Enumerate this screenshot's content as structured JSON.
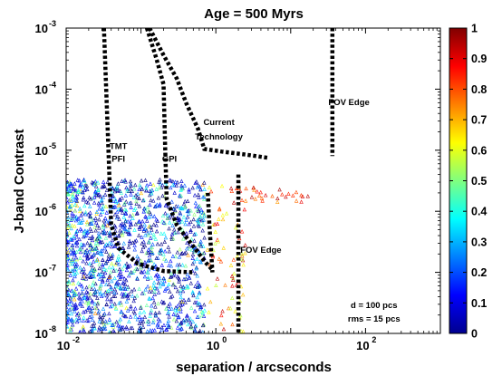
{
  "chart_data": {
    "type": "scatter",
    "title": "Age = 500 Myrs",
    "xlabel": "separation / arcseconds",
    "ylabel": "J-band Contrast",
    "x_scale": "log",
    "y_scale": "log",
    "xlim": [
      0.01,
      1000
    ],
    "ylim": [
      1e-08,
      0.001
    ],
    "x_ticks": [
      {
        "base": "10",
        "exp": "-2"
      },
      {
        "base": "10",
        "exp": "0"
      },
      {
        "base": "10",
        "exp": "2"
      }
    ],
    "y_ticks": [
      {
        "base": "10",
        "exp": "-3"
      },
      {
        "base": "10",
        "exp": "-4"
      },
      {
        "base": "10",
        "exp": "-5"
      },
      {
        "base": "10",
        "exp": "-6"
      },
      {
        "base": "10",
        "exp": "-7"
      },
      {
        "base": "10",
        "exp": "-8"
      }
    ],
    "grid": false,
    "colorbar": {
      "colormap": "jet",
      "range": [
        0,
        1
      ],
      "ticks": [
        "0",
        "0.1",
        "0.2",
        "0.3",
        "0.4",
        "0.5",
        "0.6",
        "0.7",
        "0.8",
        "0.9",
        "1"
      ]
    },
    "marker": "triangle",
    "curves": [
      {
        "points": [
          [
            0.032,
            0.001
          ],
          [
            0.04,
            6e-07
          ],
          [
            0.05,
            2.5e-07
          ],
          [
            0.09,
            1.4e-07
          ],
          [
            0.2,
            1.05e-07
          ],
          [
            0.5,
            1e-07
          ]
        ]
      },
      {
        "points": [
          [
            0.12,
            0.001
          ],
          [
            0.16,
            0.00032
          ],
          [
            0.2,
            0.00012
          ],
          [
            0.21,
            1.2e-05
          ],
          [
            0.22,
            1.6e-06
          ],
          [
            0.3,
            6e-07
          ],
          [
            0.42,
            3.5e-07
          ],
          [
            0.75,
            1.4e-07
          ],
          [
            0.9,
            1.1e-07
          ]
        ]
      },
      {
        "points": [
          [
            0.13,
            0.001
          ],
          [
            0.2,
            0.00036
          ],
          [
            0.3,
            0.00015
          ],
          [
            0.4,
            6e-05
          ],
          [
            0.58,
            2.2e-05
          ],
          [
            0.7,
            1.05e-05
          ],
          [
            1.2,
            9.5e-06
          ],
          [
            2.5,
            8.5e-06
          ],
          [
            5,
            7.5e-06
          ]
        ]
      },
      {
        "points": [
          [
            0.78,
            2e-06
          ],
          [
            0.82,
            6e-07
          ],
          [
            0.87,
            2e-07
          ],
          [
            0.9,
            1e-07
          ]
        ]
      },
      {
        "points": [
          [
            2,
            4e-06
          ],
          [
            2,
            1e-08
          ]
        ]
      },
      {
        "points": [
          [
            36,
            0.001
          ],
          [
            36,
            8e-06
          ]
        ]
      }
    ],
    "annotations": [
      {
        "text": "FOV Edge",
        "x": 60,
        "y": 5.5e-05
      },
      {
        "text": "Current",
        "x": 1.1,
        "y": 2.6e-05
      },
      {
        "text": "Technology",
        "x": 1.1,
        "y": 1.5e-05
      },
      {
        "text": "TMT",
        "x": 0.05,
        "y": 1.05e-05
      },
      {
        "text": "PFI",
        "x": 0.05,
        "y": 6.5e-06
      },
      {
        "text": "GPI",
        "x": 0.24,
        "y": 6.5e-06
      },
      {
        "text": "FOV Edge",
        "x": 4,
        "y": 2.1e-07
      },
      {
        "text": "d = 100 pcs",
        "x": 130,
        "y": 2.6e-08
      },
      {
        "text": "rms = 15 pcs",
        "x": 130,
        "y": 1.55e-08
      }
    ]
  }
}
